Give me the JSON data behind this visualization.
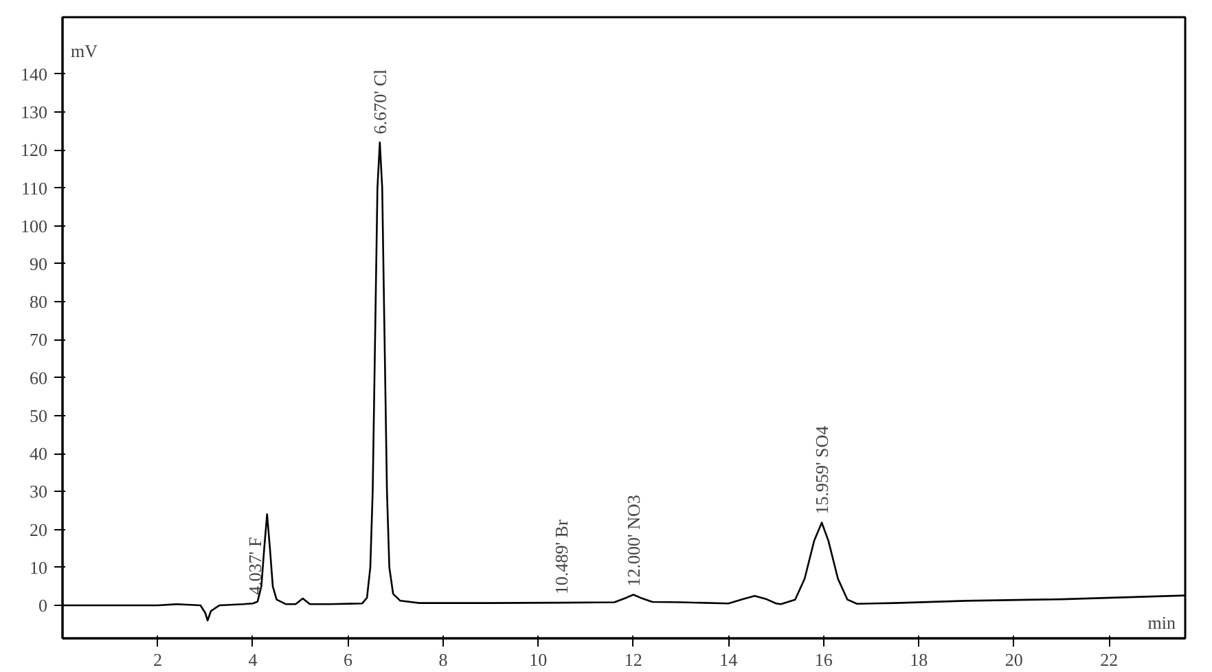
{
  "chart_data": {
    "type": "line",
    "xlabel": "min",
    "ylabel": "mV",
    "xlim": [
      0,
      23.6
    ],
    "ylim": [
      -8.7,
      155
    ],
    "xticks": [
      2,
      4,
      6,
      8,
      10,
      12,
      14,
      16,
      18,
      20,
      22
    ],
    "yticks": [
      0,
      10,
      20,
      30,
      40,
      50,
      60,
      70,
      80,
      90,
      100,
      110,
      120,
      130,
      140
    ],
    "grid": false,
    "marker": "none",
    "line_style": "solid",
    "series": [
      {
        "color": "#000000",
        "x": [
          0,
          1,
          2,
          2.4,
          2.9,
          3.0,
          3.05,
          3.12,
          3.3,
          3.8,
          4.0,
          4.1,
          4.18,
          4.24,
          4.3,
          4.36,
          4.42,
          4.5,
          4.7,
          4.9,
          5.05,
          5.2,
          5.6,
          6.3,
          6.4,
          6.47,
          6.52,
          6.57,
          6.62,
          6.67,
          6.72,
          6.77,
          6.82,
          6.87,
          6.95,
          7.1,
          7.5,
          9,
          10.5,
          11.6,
          11.85,
          12.0,
          12.15,
          12.4,
          13,
          14.0,
          14.3,
          14.55,
          14.8,
          15.0,
          15.1,
          15.4,
          15.6,
          15.8,
          15.96,
          16.1,
          16.3,
          16.5,
          16.7,
          17.5,
          19,
          21,
          23.6
        ],
        "values": [
          0,
          0,
          0,
          0.3,
          0,
          -2,
          -4,
          -1.5,
          0,
          0.3,
          0.5,
          1,
          5,
          15,
          24,
          15,
          5,
          1.5,
          0.3,
          0.3,
          1.8,
          0.3,
          0.3,
          0.5,
          2,
          10,
          30,
          70,
          110,
          122,
          110,
          70,
          30,
          10,
          3,
          1.2,
          0.6,
          0.6,
          0.7,
          0.8,
          2,
          2.8,
          2,
          0.9,
          0.8,
          0.5,
          1.6,
          2.5,
          1.6,
          0.5,
          0.3,
          1.5,
          7,
          17,
          21.8,
          17,
          7,
          1.5,
          0.4,
          0.6,
          1.2,
          1.6,
          2.6
        ]
      }
    ],
    "annotations": [
      {
        "text": "4.037' F",
        "x": 4.037,
        "y": 0.6
      },
      {
        "text": "6.670' Cl",
        "x": 6.67,
        "y": 122
      },
      {
        "text": "10.489' Br",
        "x": 10.489,
        "y": 0.7
      },
      {
        "text": "12.000' NO3",
        "x": 12.0,
        "y": 2.8
      },
      {
        "text": "15.959' SO4",
        "x": 15.959,
        "y": 21.8
      }
    ]
  }
}
